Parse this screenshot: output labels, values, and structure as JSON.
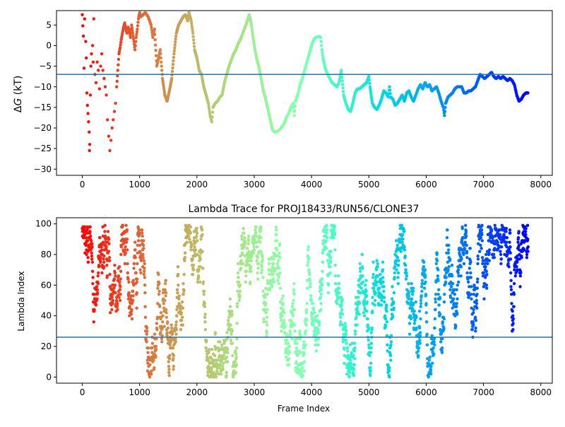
{
  "chart_data": [
    {
      "type": "scatter",
      "title": "",
      "xlabel": "",
      "ylabel": "ΔG (kT)",
      "ylabel_parts": {
        "symbol": "Δ",
        "var": "G",
        "unit": " (kT)"
      },
      "xlim": [
        -450,
        8200
      ],
      "ylim": [
        -31.5,
        8.5
      ],
      "xticks": [
        0,
        1000,
        2000,
        3000,
        4000,
        5000,
        6000,
        7000,
        8000
      ],
      "yticks": [
        -30,
        -25,
        -20,
        -15,
        -10,
        -5,
        0,
        5
      ],
      "hline": {
        "y": -7.0,
        "color": "#1f77b4"
      },
      "colormap": "rainbow (red at frame 0 → violet at last frame)",
      "series": [
        {
          "marker": "dot",
          "points": [
            [
              0,
              7.5
            ],
            [
              10,
              4.8
            ],
            [
              20,
              2.3
            ],
            [
              30,
              -5.5
            ],
            [
              40,
              6.5
            ],
            [
              60,
              1.0
            ],
            [
              70,
              -3.0
            ],
            [
              80,
              -11.5
            ],
            [
              90,
              -14.5
            ],
            [
              100,
              -16.5
            ],
            [
              110,
              -18.5
            ],
            [
              120,
              -21.0
            ],
            [
              125,
              -25.5
            ],
            [
              130,
              -24.0
            ],
            [
              140,
              -12.0
            ],
            [
              150,
              -5.0
            ],
            [
              160,
              -2.0
            ],
            [
              180,
              0.0
            ],
            [
              190,
              -4.0
            ],
            [
              200,
              6.5
            ],
            [
              220,
              -7.0
            ],
            [
              240,
              -9.0
            ],
            [
              260,
              -4.0
            ],
            [
              280,
              -6.0
            ],
            [
              300,
              -10.5
            ],
            [
              320,
              -5.0
            ],
            [
              340,
              -2.0
            ],
            [
              360,
              -6.0
            ],
            [
              380,
              -8.0
            ],
            [
              400,
              -10.0
            ],
            [
              420,
              -12.0
            ],
            [
              440,
              -18.0
            ],
            [
              460,
              -22.0
            ],
            [
              480,
              -25.5
            ],
            [
              500,
              -23.0
            ],
            [
              520,
              -20.0
            ],
            [
              540,
              -18.0
            ],
            [
              560,
              -16.0
            ],
            [
              580,
              -14.0
            ],
            [
              600,
              -10.0
            ],
            [
              620,
              -6.0
            ],
            [
              640,
              -2.0
            ],
            [
              660,
              -0.5
            ],
            [
              680,
              1.5
            ],
            [
              700,
              3.0
            ],
            [
              720,
              4.5
            ],
            [
              740,
              5.5
            ],
            [
              760,
              4.0
            ],
            [
              780,
              3.0
            ],
            [
              800,
              4.5
            ],
            [
              820,
              3.5
            ],
            [
              840,
              2.0
            ],
            [
              860,
              5.0
            ],
            [
              880,
              3.0
            ],
            [
              900,
              1.0
            ],
            [
              920,
              -1.0
            ],
            [
              940,
              2.0
            ],
            [
              960,
              4.0
            ],
            [
              980,
              6.5
            ],
            [
              1000,
              8.0
            ],
            [
              1020,
              7.0
            ],
            [
              1060,
              7.5
            ],
            [
              1100,
              8.0
            ],
            [
              1150,
              7.0
            ],
            [
              1200,
              5.0
            ],
            [
              1230,
              2.0
            ],
            [
              1260,
              4.0
            ],
            [
              1300,
              -5.0
            ],
            [
              1330,
              -3.0
            ],
            [
              1360,
              -1.0
            ],
            [
              1400,
              -8.0
            ],
            [
              1440,
              -12.0
            ],
            [
              1480,
              -13.5
            ],
            [
              1520,
              -11.0
            ],
            [
              1560,
              -8.0
            ],
            [
              1600,
              -2.0
            ],
            [
              1640,
              3.0
            ],
            [
              1680,
              5.0
            ],
            [
              1720,
              6.0
            ],
            [
              1760,
              7.0
            ],
            [
              1800,
              7.5
            ],
            [
              1840,
              6.0
            ],
            [
              1860,
              8.0
            ],
            [
              1900,
              6.0
            ],
            [
              1930,
              3.0
            ],
            [
              1960,
              -1.0
            ],
            [
              2000,
              -3.0
            ],
            [
              2040,
              -6.0
            ],
            [
              2080,
              -7.0
            ],
            [
              2120,
              -10.0
            ],
            [
              2160,
              -12.0
            ],
            [
              2200,
              -14.0
            ],
            [
              2230,
              -17.0
            ],
            [
              2260,
              -18.5
            ],
            [
              2280,
              -15.0
            ],
            [
              2320,
              -14.0
            ],
            [
              2360,
              -13.5
            ],
            [
              2400,
              -12.5
            ],
            [
              2440,
              -12.0
            ],
            [
              2480,
              -9.0
            ],
            [
              2520,
              -7.0
            ],
            [
              2560,
              -5.0
            ],
            [
              2600,
              -3.5
            ],
            [
              2640,
              -2.0
            ],
            [
              2680,
              -1.0
            ],
            [
              2720,
              0.5
            ],
            [
              2760,
              1.5
            ],
            [
              2800,
              3.0
            ],
            [
              2840,
              4.5
            ],
            [
              2880,
              6.0
            ],
            [
              2910,
              7.5
            ],
            [
              2940,
              6.0
            ],
            [
              2970,
              3.0
            ],
            [
              3000,
              0.0
            ],
            [
              3040,
              -3.0
            ],
            [
              3080,
              -5.0
            ],
            [
              3120,
              -8.0
            ],
            [
              3160,
              -11.0
            ],
            [
              3200,
              -13.0
            ],
            [
              3240,
              -15.5
            ],
            [
              3280,
              -18.0
            ],
            [
              3320,
              -20.5
            ],
            [
              3360,
              -21.0
            ],
            [
              3400,
              -20.8
            ],
            [
              3440,
              -20.5
            ],
            [
              3480,
              -19.8
            ],
            [
              3520,
              -19.0
            ],
            [
              3560,
              -17.5
            ],
            [
              3600,
              -16.5
            ],
            [
              3640,
              -15.0
            ],
            [
              3680,
              -14.0
            ],
            [
              3700,
              -17.0
            ],
            [
              3720,
              -13.5
            ],
            [
              3760,
              -12.0
            ],
            [
              3800,
              -9.5
            ],
            [
              3840,
              -8.0
            ],
            [
              3880,
              -6.0
            ],
            [
              3920,
              -4.0
            ],
            [
              3960,
              -2.0
            ],
            [
              4000,
              0.0
            ],
            [
              4040,
              1.5
            ],
            [
              4080,
              2.0
            ],
            [
              4120,
              2.2
            ],
            [
              4160,
              2.0
            ],
            [
              4180,
              -1.0
            ],
            [
              4200,
              -3.0
            ],
            [
              4240,
              -5.5
            ],
            [
              4280,
              -7.0
            ],
            [
              4320,
              -8.0
            ],
            [
              4360,
              -9.0
            ],
            [
              4400,
              -9.5
            ],
            [
              4440,
              -10.0
            ],
            [
              4480,
              -9.0
            ],
            [
              4520,
              -6.0
            ],
            [
              4560,
              -12.0
            ],
            [
              4600,
              -14.0
            ],
            [
              4640,
              -15.5
            ],
            [
              4680,
              -16.0
            ],
            [
              4720,
              -14.0
            ],
            [
              4760,
              -11.5
            ],
            [
              4800,
              -10.5
            ],
            [
              4840,
              -10.5
            ],
            [
              4880,
              -10.0
            ],
            [
              4920,
              -9.5
            ],
            [
              4960,
              -9.0
            ],
            [
              5000,
              -7.5
            ],
            [
              5020,
              -10.0
            ],
            [
              5060,
              -14.0
            ],
            [
              5100,
              -15.0
            ],
            [
              5140,
              -15.5
            ],
            [
              5180,
              -14.5
            ],
            [
              5220,
              -13.0
            ],
            [
              5260,
              -11.0
            ],
            [
              5300,
              -11.5
            ],
            [
              5340,
              -12.5
            ],
            [
              5360,
              -10.0
            ],
            [
              5380,
              -12.5
            ],
            [
              5420,
              -13.0
            ],
            [
              5460,
              -14.5
            ],
            [
              5500,
              -14.0
            ],
            [
              5540,
              -13.0
            ],
            [
              5580,
              -12.0
            ],
            [
              5620,
              -13.5
            ],
            [
              5660,
              -11.5
            ],
            [
              5700,
              -11.0
            ],
            [
              5740,
              -12.5
            ],
            [
              5780,
              -13.5
            ],
            [
              5820,
              -12.0
            ],
            [
              5860,
              -10.5
            ],
            [
              5900,
              -9.5
            ],
            [
              5940,
              -10.5
            ],
            [
              5980,
              -9.0
            ],
            [
              6020,
              -10.0
            ],
            [
              6060,
              -9.5
            ],
            [
              6100,
              -11.0
            ],
            [
              6140,
              -10.5
            ],
            [
              6180,
              -10.0
            ],
            [
              6220,
              -11.5
            ],
            [
              6260,
              -13.5
            ],
            [
              6300,
              -15.0
            ],
            [
              6320,
              -17.0
            ],
            [
              6340,
              -14.0
            ],
            [
              6380,
              -12.5
            ],
            [
              6420,
              -12.0
            ],
            [
              6460,
              -11.5
            ],
            [
              6500,
              -10.5
            ],
            [
              6540,
              -10.0
            ],
            [
              6580,
              -10.0
            ],
            [
              6620,
              -10.0
            ],
            [
              6660,
              -11.5
            ],
            [
              6700,
              -11.5
            ],
            [
              6740,
              -11.0
            ],
            [
              6780,
              -11.0
            ],
            [
              6820,
              -10.5
            ],
            [
              6860,
              -10.0
            ],
            [
              6900,
              -8.5
            ],
            [
              6940,
              -7.0
            ],
            [
              6980,
              -7.5
            ],
            [
              7020,
              -8.0
            ],
            [
              7060,
              -7.5
            ],
            [
              7100,
              -7.0
            ],
            [
              7140,
              -6.5
            ],
            [
              7180,
              -7.5
            ],
            [
              7220,
              -8.0
            ],
            [
              7260,
              -7.5
            ],
            [
              7300,
              -8.0
            ],
            [
              7340,
              -7.5
            ],
            [
              7380,
              -8.0
            ],
            [
              7420,
              -8.5
            ],
            [
              7460,
              -8.0
            ],
            [
              7500,
              -8.5
            ],
            [
              7540,
              -9.5
            ],
            [
              7580,
              -12.0
            ],
            [
              7620,
              -13.5
            ],
            [
              7660,
              -13.0
            ],
            [
              7700,
              -12.0
            ],
            [
              7740,
              -11.5
            ],
            [
              7780,
              -11.5
            ]
          ]
        }
      ]
    },
    {
      "type": "scatter",
      "title": "Lambda Trace for PROJ18433/RUN56/CLONE37",
      "xlabel": "Frame Index",
      "ylabel": "Lambda Index",
      "xlim": [
        -450,
        8200
      ],
      "ylim": [
        -4,
        104
      ],
      "xticks": [
        0,
        1000,
        2000,
        3000,
        4000,
        5000,
        6000,
        7000,
        8000
      ],
      "yticks": [
        0,
        20,
        40,
        60,
        80,
        100
      ],
      "hline": {
        "y": 26,
        "color": "#1f77b4"
      },
      "colormap": "rainbow (red at frame 0 → violet at last frame)",
      "series": [
        {
          "marker": "dot",
          "frames": 7780,
          "lambda_range": [
            0,
            99
          ],
          "note_points": "dense random walk of lambda values spanning 0–99 over all frames"
        }
      ]
    }
  ]
}
